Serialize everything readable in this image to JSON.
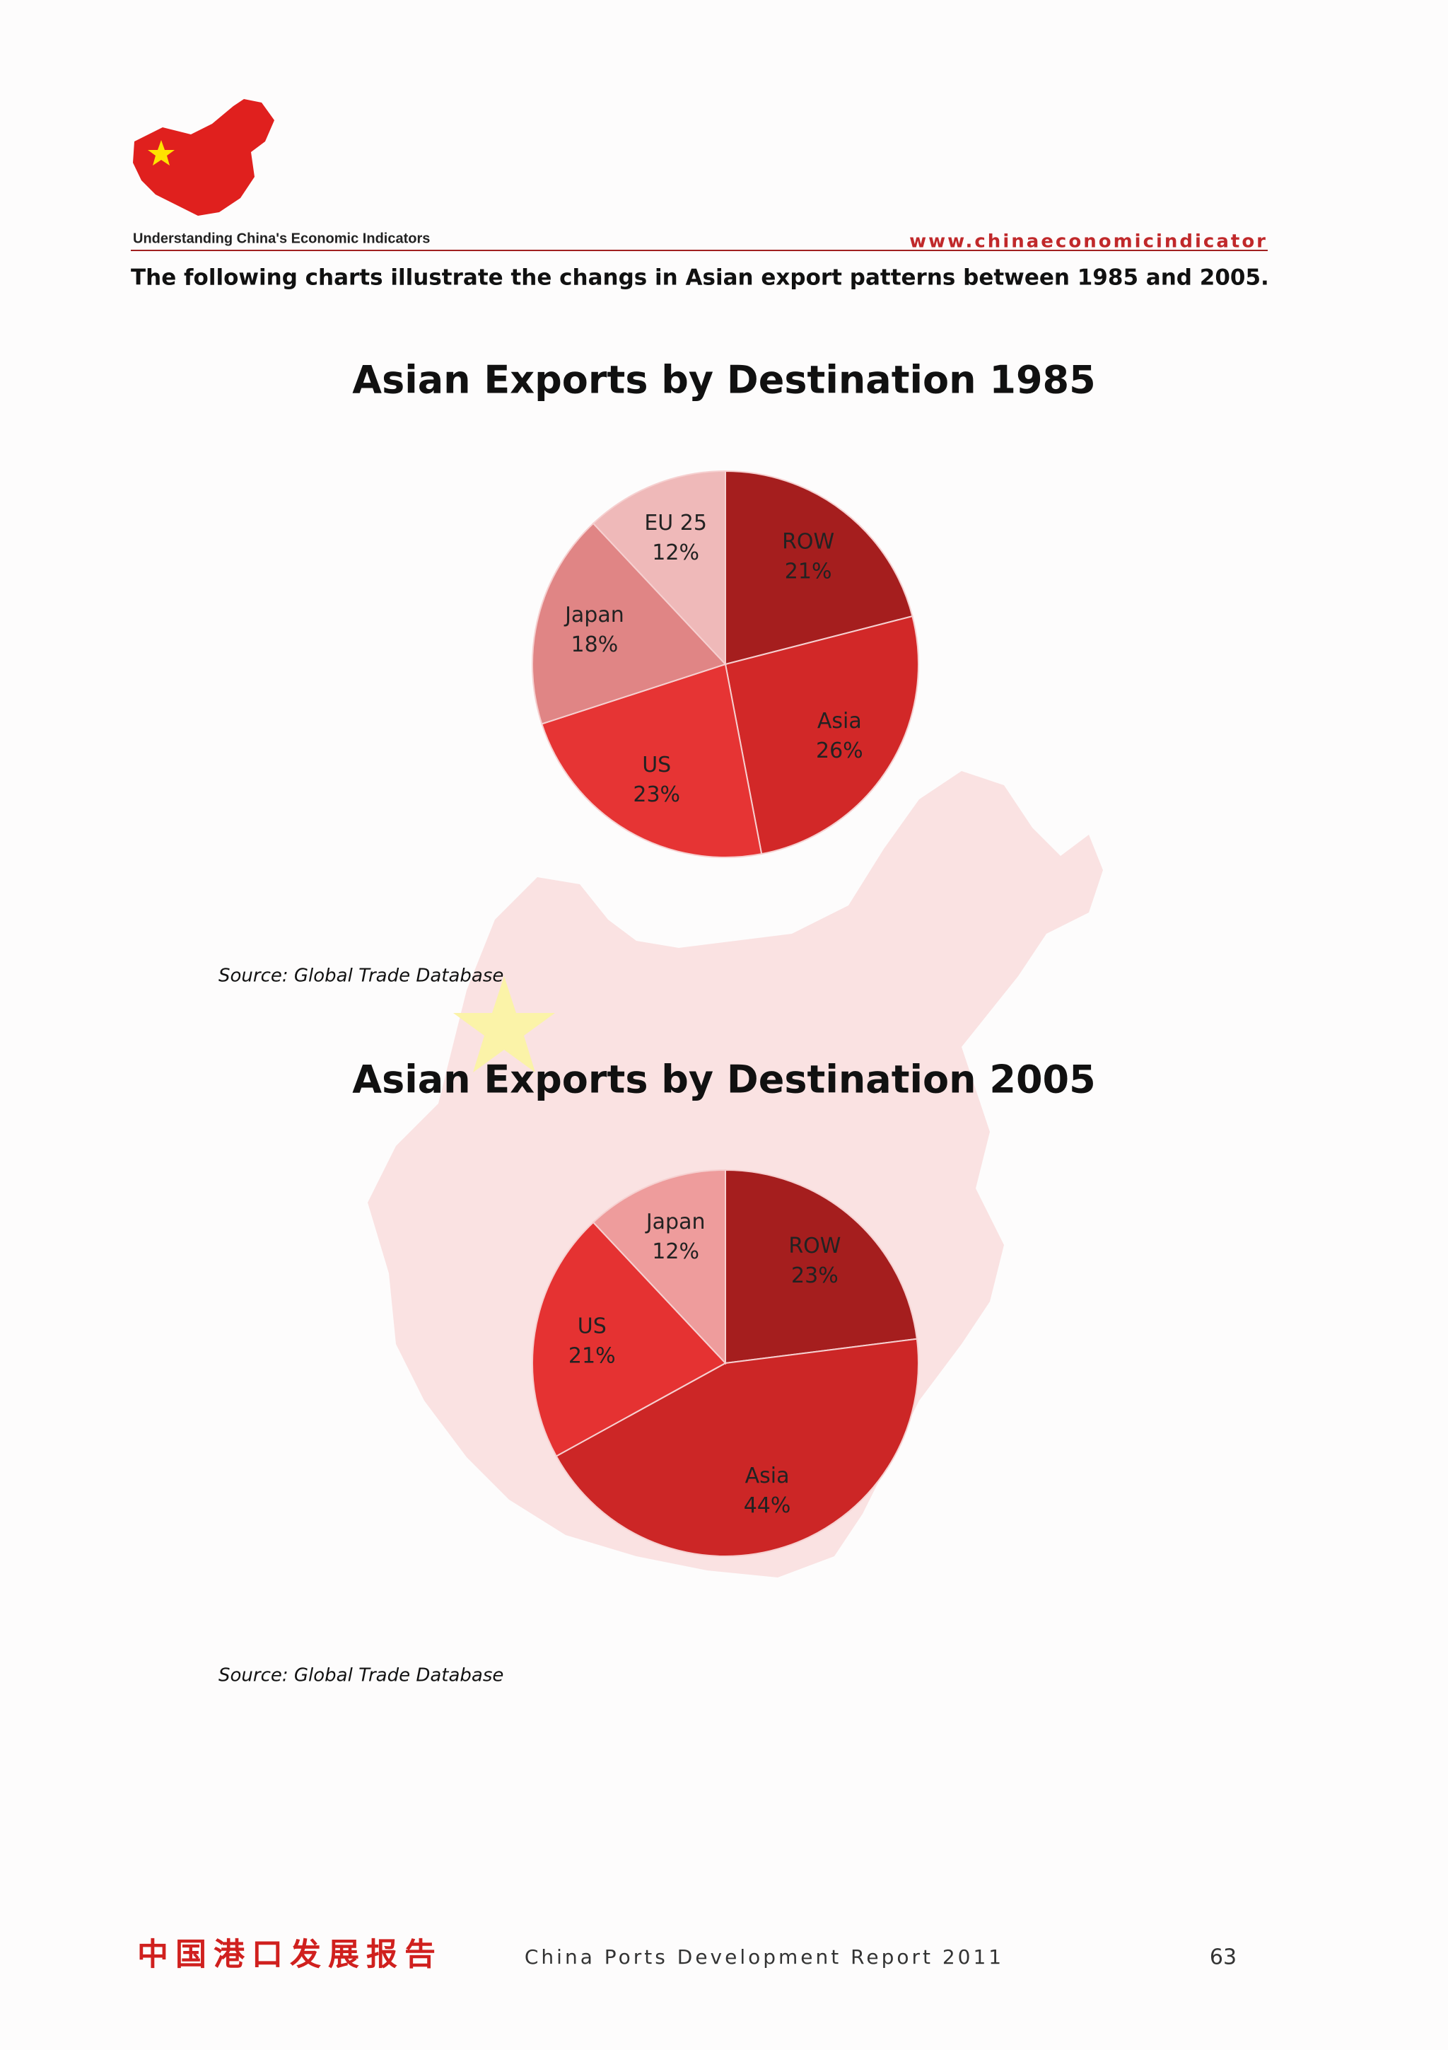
{
  "header": {
    "brand": "Understanding China's Economic Indicators",
    "website": "www.chinaeconomicindicator"
  },
  "intro": "The following charts illustrate the changs in Asian export patterns between 1985 and 2005.",
  "chart_data": [
    {
      "type": "pie",
      "title": "Asian Exports by Destination 1985",
      "categories": [
        "ROW",
        "Asia",
        "US",
        "Japan",
        "EU 25"
      ],
      "values": [
        21,
        26,
        23,
        18,
        12
      ],
      "value_labels": [
        "21%",
        "26%",
        "23%",
        "18%",
        "12%"
      ],
      "colors": [
        "#a51e1e",
        "#d22828",
        "#e63434",
        "#e08585",
        "#efb9b9"
      ],
      "source": "Source: Global Trade Database"
    },
    {
      "type": "pie",
      "title": "Asian Exports by Destination 2005",
      "categories": [
        "ROW",
        "Asia",
        "US",
        "Japan"
      ],
      "values": [
        23,
        44,
        21,
        12
      ],
      "value_labels": [
        "23%",
        "44%",
        "21%",
        "12%"
      ],
      "colors": [
        "#a51e1e",
        "#cc2626",
        "#e53232",
        "#ee9c9c"
      ],
      "source": "Source: Global Trade Database"
    }
  ],
  "footer": {
    "chinese": "中国港口发展报告",
    "report": "China Ports Development Report 2011",
    "page": "63"
  }
}
